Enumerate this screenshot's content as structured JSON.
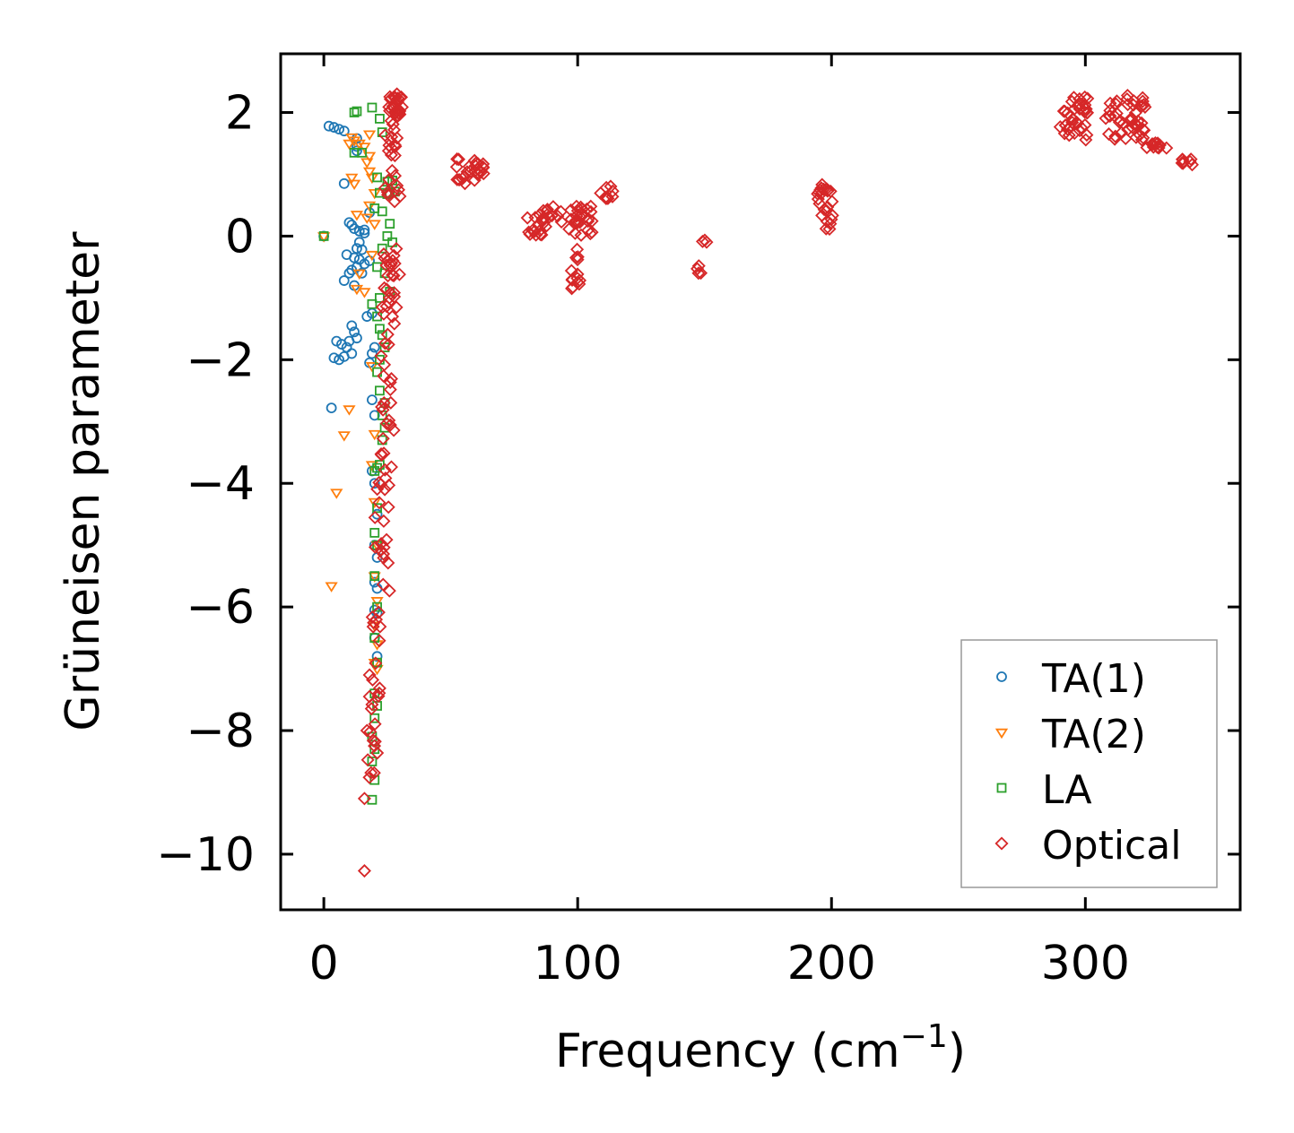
{
  "chart_data": {
    "type": "scatter",
    "title": "",
    "xlabel": "Frequency (cm",
    "xlabel_sup": "−1",
    "xlabel_end": ")",
    "ylabel": "Grüneisen parameter",
    "xlim": [
      -17,
      361
    ],
    "ylim": [
      -10.9,
      2.95
    ],
    "xticks": [
      0,
      100,
      200,
      300
    ],
    "xtick_labels": [
      "0",
      "100",
      "200",
      "300"
    ],
    "yticks": [
      2,
      0,
      -2,
      -4,
      -6,
      -8,
      -10
    ],
    "ytick_labels": [
      "2",
      "0",
      "−2",
      "−4",
      "−6",
      "−8",
      "−10"
    ],
    "grid": false,
    "legend_position": "bottom-right",
    "series": [
      {
        "name": "TA(1)",
        "marker": "circle",
        "color": "#1f77b4",
        "points": [
          [
            2,
            1.78
          ],
          [
            4,
            1.76
          ],
          [
            6,
            1.73
          ],
          [
            8,
            1.7
          ],
          [
            13,
            1.58
          ],
          [
            13,
            1.45
          ],
          [
            13,
            1.38
          ],
          [
            8,
            0.85
          ],
          [
            10,
            0.22
          ],
          [
            11,
            0.18
          ],
          [
            12,
            0.12
          ],
          [
            14,
            0.08
          ],
          [
            16,
            0.05
          ],
          [
            14,
            -0.1
          ],
          [
            13,
            -0.2
          ],
          [
            15,
            -0.22
          ],
          [
            12,
            -0.35
          ],
          [
            14,
            -0.38
          ],
          [
            16,
            -0.45
          ],
          [
            13,
            -0.5
          ],
          [
            11,
            -0.55
          ],
          [
            15,
            -0.6
          ],
          [
            18,
            -0.4
          ],
          [
            9,
            -0.3
          ],
          [
            10,
            -0.6
          ],
          [
            8,
            -0.72
          ],
          [
            12,
            -0.8
          ],
          [
            17,
            -1.3
          ],
          [
            19,
            -1.25
          ],
          [
            11,
            -1.45
          ],
          [
            12,
            -1.55
          ],
          [
            13,
            -1.65
          ],
          [
            10,
            -1.7
          ],
          [
            5,
            -1.7
          ],
          [
            7,
            -1.75
          ],
          [
            9,
            -1.8
          ],
          [
            11,
            -1.9
          ],
          [
            8,
            -1.95
          ],
          [
            4,
            -1.97
          ],
          [
            6,
            -2.0
          ],
          [
            19,
            -1.9
          ],
          [
            18,
            -2.05
          ],
          [
            20,
            -1.8
          ],
          [
            3,
            -2.78
          ],
          [
            19,
            -2.65
          ],
          [
            20,
            -2.9
          ],
          [
            19,
            -3.8
          ],
          [
            20,
            -4.0
          ],
          [
            21,
            -4.5
          ],
          [
            20,
            -5.0
          ],
          [
            21,
            -5.2
          ],
          [
            20,
            -5.6
          ],
          [
            21,
            -5.7
          ],
          [
            20,
            -6.05
          ],
          [
            21,
            -6.1
          ],
          [
            20,
            -6.5
          ],
          [
            21,
            -6.8
          ],
          [
            0,
            0
          ],
          [
            18,
            0.38
          ],
          [
            16,
            0.1
          ]
        ]
      },
      {
        "name": "TA(2)",
        "marker": "triangle",
        "color": "#ff7f0e",
        "points": [
          [
            11,
            1.6
          ],
          [
            10,
            1.5
          ],
          [
            12,
            1.55
          ],
          [
            14,
            1.5
          ],
          [
            16,
            1.45
          ],
          [
            18,
            1.65
          ],
          [
            18,
            1.3
          ],
          [
            17,
            1.2
          ],
          [
            18,
            1.05
          ],
          [
            19,
            0.95
          ],
          [
            11,
            0.95
          ],
          [
            12,
            0.85
          ],
          [
            20,
            0.7
          ],
          [
            18,
            0.5
          ],
          [
            13,
            0.35
          ],
          [
            17,
            0.3
          ],
          [
            20,
            0.2
          ],
          [
            19,
            -0.3
          ],
          [
            14,
            -0.6
          ],
          [
            13,
            -0.85
          ],
          [
            16,
            -0.9
          ],
          [
            10,
            -2.8
          ],
          [
            8,
            -3.22
          ],
          [
            5,
            -4.15
          ],
          [
            3,
            -5.66
          ],
          [
            20,
            -4.3
          ],
          [
            21,
            -5.0
          ],
          [
            20,
            -5.5
          ],
          [
            21,
            -5.9
          ],
          [
            20,
            -6.3
          ],
          [
            21,
            -6.6
          ],
          [
            20,
            -6.9
          ],
          [
            21,
            -7.0
          ],
          [
            0,
            0
          ],
          [
            19,
            -2.1
          ],
          [
            20,
            -3.2
          ],
          [
            19,
            -3.7
          ]
        ]
      },
      {
        "name": "LA",
        "marker": "square",
        "color": "#2ca02c",
        "points": [
          [
            12,
            2.0
          ],
          [
            13,
            2.02
          ],
          [
            19,
            2.08
          ],
          [
            22,
            1.9
          ],
          [
            23,
            1.68
          ],
          [
            12,
            1.35
          ],
          [
            15,
            1.35
          ],
          [
            21,
            0.95
          ],
          [
            25,
            0.88
          ],
          [
            27,
            0.9
          ],
          [
            22,
            0.7
          ],
          [
            25,
            0.68
          ],
          [
            26,
            0.7
          ],
          [
            28,
            0.72
          ],
          [
            20,
            0.45
          ],
          [
            23,
            0.4
          ],
          [
            26,
            0.2
          ],
          [
            25,
            0.0
          ],
          [
            27,
            -0.1
          ],
          [
            23,
            -0.2
          ],
          [
            21,
            -0.5
          ],
          [
            24,
            -0.6
          ],
          [
            26,
            -0.9
          ],
          [
            22,
            -1.0
          ],
          [
            19,
            -1.1
          ],
          [
            21,
            -1.3
          ],
          [
            22,
            -1.5
          ],
          [
            23,
            -1.6
          ],
          [
            24,
            -1.8
          ],
          [
            22,
            -2.0
          ],
          [
            21,
            -2.2
          ],
          [
            22,
            -2.5
          ],
          [
            24,
            -2.7
          ],
          [
            23,
            -2.9
          ],
          [
            24,
            -3.1
          ],
          [
            23,
            -3.3
          ],
          [
            22,
            -3.7
          ],
          [
            21,
            -3.75
          ],
          [
            20,
            -3.8
          ],
          [
            21,
            -4.4
          ],
          [
            20,
            -4.8
          ],
          [
            21,
            -5.0
          ],
          [
            20,
            -5.5
          ],
          [
            21,
            -6.0
          ],
          [
            20,
            -6.5
          ],
          [
            21,
            -6.9
          ],
          [
            20,
            -7.4
          ],
          [
            21,
            -7.6
          ],
          [
            20,
            -7.8
          ],
          [
            19,
            -8.1
          ],
          [
            20,
            -8.3
          ],
          [
            19,
            -8.5
          ],
          [
            20,
            -8.8
          ],
          [
            19,
            -9.12
          ],
          [
            0,
            0
          ]
        ]
      },
      {
        "name": "Optical",
        "marker": "diamond",
        "color": "#d62728",
        "clusters": [
          {
            "x": [
              25,
              31
            ],
            "y": [
              1.9,
              2.3
            ],
            "n": 26
          },
          {
            "x": [
              24,
              30
            ],
            "y": [
              1.3,
              1.9
            ],
            "n": 14
          },
          {
            "x": [
              24,
              30
            ],
            "y": [
              0.2,
              1.1
            ],
            "n": 10
          },
          {
            "x": [
              23,
              30
            ],
            "y": [
              -1.6,
              -0.2
            ],
            "n": 28
          },
          {
            "x": [
              22,
              28
            ],
            "y": [
              -3.8,
              -1.7
            ],
            "n": 22
          },
          {
            "x": [
              20,
              26
            ],
            "y": [
              -5.8,
              -3.9
            ],
            "n": 20
          },
          {
            "x": [
              18,
              23
            ],
            "y": [
              -7.8,
              -6.0
            ],
            "n": 14
          },
          {
            "x": [
              17,
              22
            ],
            "y": [
              -8.8,
              -7.8
            ],
            "n": 10
          },
          {
            "x": [
              52,
              63
            ],
            "y": [
              0.85,
              1.25
            ],
            "n": 26
          },
          {
            "x": [
              80,
              88
            ],
            "y": [
              0.0,
              0.35
            ],
            "n": 14
          },
          {
            "x": [
              86,
              95
            ],
            "y": [
              0.2,
              0.5
            ],
            "n": 14
          },
          {
            "x": [
              96,
              106
            ],
            "y": [
              0.0,
              0.5
            ],
            "n": 26
          },
          {
            "x": [
              97,
              101
            ],
            "y": [
              -0.85,
              -0.5
            ],
            "n": 10
          },
          {
            "x": [
              97,
              101
            ],
            "y": [
              -0.4,
              -0.2
            ],
            "n": 4
          },
          {
            "x": [
              109,
              114
            ],
            "y": [
              0.6,
              0.85
            ],
            "n": 8
          },
          {
            "x": [
              146,
              149
            ],
            "y": [
              -0.6,
              -0.45
            ],
            "n": 4
          },
          {
            "x": [
              149,
              152
            ],
            "y": [
              -0.1,
              0.0
            ],
            "n": 3
          },
          {
            "x": [
              194,
              201
            ],
            "y": [
              0.1,
              0.85
            ],
            "n": 24
          },
          {
            "x": [
              290,
              301
            ],
            "y": [
              1.55,
              2.25
            ],
            "n": 36
          },
          {
            "x": [
              308,
              324
            ],
            "y": [
              1.55,
              2.3
            ],
            "n": 44
          },
          {
            "x": [
              324,
              333
            ],
            "y": [
              1.4,
              1.55
            ],
            "n": 10
          },
          {
            "x": [
              338,
              344
            ],
            "y": [
              1.15,
              1.25
            ],
            "n": 8
          }
        ],
        "points": [
          [
            16,
            -10.27
          ],
          [
            16,
            -9.1
          ],
          [
            17,
            -8.0
          ],
          [
            18,
            -7.45
          ],
          [
            18,
            -7.1
          ]
        ]
      }
    ]
  }
}
